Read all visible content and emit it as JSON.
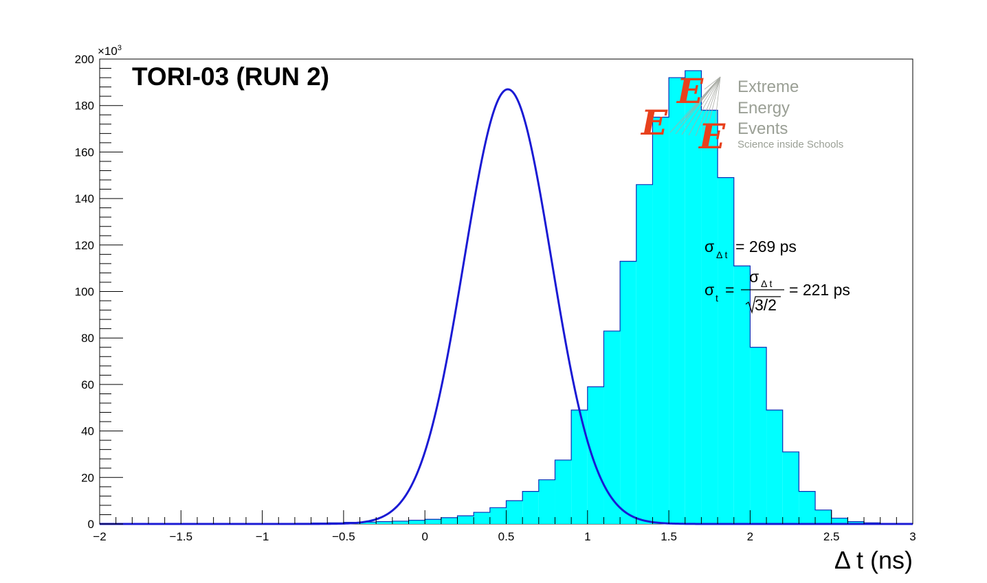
{
  "chart_data": {
    "type": "bar",
    "title": "TORI-03 (RUN 2)",
    "xlabel": "Δ t (ns)",
    "ylabel": "",
    "y_multiplier_label": "×10",
    "y_multiplier_exp": "3",
    "xlim": [
      -2,
      3
    ],
    "ylim": [
      0,
      200
    ],
    "x_ticks": [
      "−2",
      "−1.5",
      "−1",
      "−0.5",
      "0",
      "0.5",
      "1",
      "1.5",
      "2",
      "2.5",
      "3"
    ],
    "x_tick_values": [
      -2,
      -1.5,
      -1,
      -0.5,
      0,
      0.5,
      1,
      1.5,
      2,
      2.5,
      3
    ],
    "y_ticks": [
      "0",
      "20",
      "40",
      "60",
      "80",
      "100",
      "120",
      "140",
      "160",
      "180",
      "200"
    ],
    "y_tick_values": [
      0,
      20,
      40,
      60,
      80,
      100,
      120,
      140,
      160,
      180,
      200
    ],
    "grid": false,
    "bin_width": 0.1,
    "bin_start": -2.0,
    "histogram_values": [
      0.1,
      0.1,
      0.1,
      0.1,
      0.1,
      0.1,
      0.1,
      0.1,
      0.1,
      0.1,
      0.15,
      0.2,
      0.3,
      0.4,
      0.5,
      0.7,
      0.8,
      1.0,
      1.2,
      1.6,
      2.0,
      2.7,
      3.5,
      5.0,
      7.0,
      10.0,
      14.0,
      19.0,
      27.5,
      49.0,
      59.0,
      83.0,
      113.0,
      146.0,
      175.0,
      192.0,
      195.0,
      178.0,
      149.0,
      111.0,
      76.0,
      49.0,
      31.0,
      14.0,
      6.0,
      2.5,
      1.0,
      0.5,
      0.2,
      0.1,
      0.1
    ],
    "histogram_fill": "#00ffff",
    "histogram_edge": "#0a2bb5",
    "fit": {
      "type": "gaussian",
      "amplitude": 187,
      "mean": 0.51,
      "sigma": 0.269,
      "color": "#1a1ad4"
    },
    "annotations": {
      "sigma_dt_symbol": "σ",
      "sigma_dt_sub": "Δ t",
      "sigma_dt_value": "= 269 ps",
      "sigma_t_symbol": "σ",
      "sigma_t_sub": "t",
      "sigma_t_eq": "=",
      "frac_num_symbol": "σ",
      "frac_num_sub": "Δ t",
      "frac_den": "3/2",
      "sigma_t_value": "= 221 ps"
    }
  },
  "logo": {
    "line1": "Extreme",
    "line2": "Energy",
    "line3": "Events",
    "tagline": "Science inside Schools",
    "letter": "E",
    "letter_color": "#e8401c",
    "text_color": "#9a9f95"
  }
}
